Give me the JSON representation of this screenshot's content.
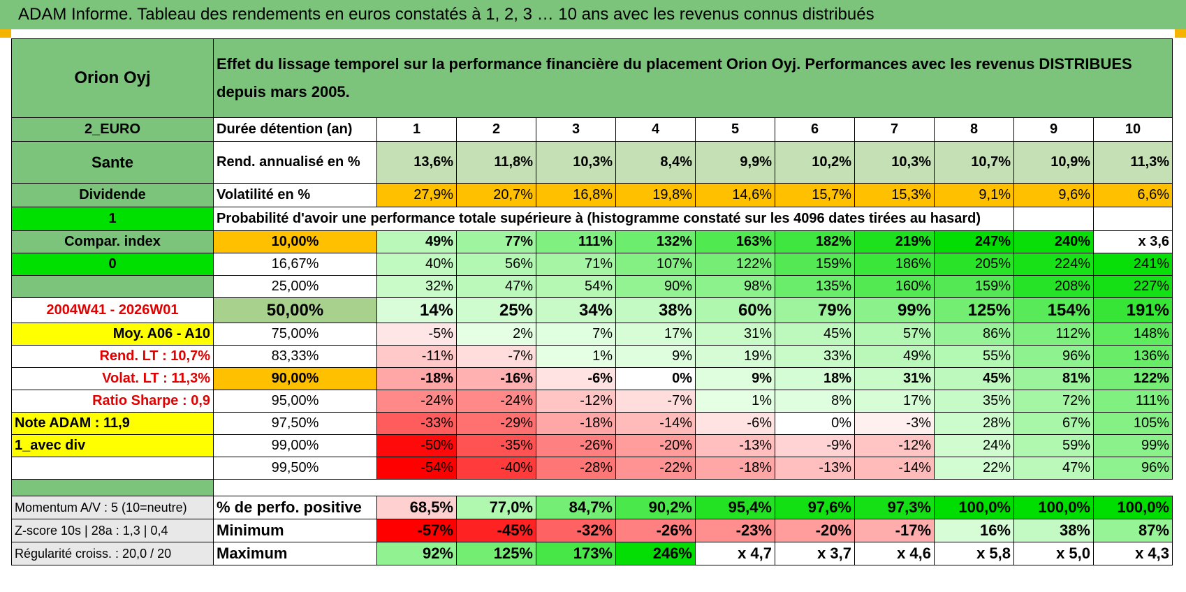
{
  "title": "ADAM Informe. Tableau des rendements en euros constatés à 1, 2, 3 … 10 ans avec les revenus connus distribués",
  "header": {
    "name": "Orion Oyj",
    "description": "Effet du lissage temporel sur la performance financière du placement Orion Oyj. Performances avec les revenus DISTRIBUES depuis mars 2005."
  },
  "left_labels": {
    "currency": "2_EURO",
    "sector": "Sante",
    "type": "Dividende",
    "flag1": "1",
    "compar": "Compar. index",
    "flag0": "0",
    "period": "2004W41 - 2026W01",
    "moy": "Moy. A06 - A10",
    "rend_lt": "Rend. LT :    10,7%",
    "volat_lt": "Volat. LT :    11,3%",
    "sharpe": "Ratio Sharpe :     0,9",
    "note": "Note ADAM : 11,9",
    "avec_div": "1_avec div"
  },
  "row_labels": {
    "duree": "Durée détention (an)",
    "rend": "Rend. annualisé en %",
    "vol": "Volatilité en %",
    "prob": "Probabilité d'avoir une performance totale supérieure à (histogramme constaté sur les 4096 dates tirées au hasard)"
  },
  "years": [
    "1",
    "2",
    "3",
    "4",
    "5",
    "6",
    "7",
    "8",
    "9",
    "10"
  ],
  "rend": [
    "13,6%",
    "11,8%",
    "10,3%",
    "8,4%",
    "9,9%",
    "10,2%",
    "10,3%",
    "10,7%",
    "10,9%",
    "11,3%"
  ],
  "vol": [
    "27,9%",
    "20,7%",
    "16,8%",
    "19,8%",
    "14,6%",
    "15,7%",
    "15,3%",
    "9,1%",
    "9,6%",
    "6,6%"
  ],
  "prob_rows": [
    {
      "pct": "10,00%",
      "values": [
        "49%",
        "77%",
        "111%",
        "132%",
        "163%",
        "182%",
        "219%",
        "247%",
        "240%",
        "x 3,6"
      ]
    },
    {
      "pct": "16,67%",
      "values": [
        "40%",
        "56%",
        "71%",
        "107%",
        "122%",
        "159%",
        "186%",
        "205%",
        "224%",
        "241%"
      ]
    },
    {
      "pct": "25,00%",
      "values": [
        "32%",
        "47%",
        "54%",
        "90%",
        "98%",
        "135%",
        "160%",
        "159%",
        "208%",
        "227%"
      ]
    },
    {
      "pct": "50,00%",
      "values": [
        "14%",
        "25%",
        "34%",
        "38%",
        "60%",
        "79%",
        "99%",
        "125%",
        "154%",
        "191%"
      ]
    },
    {
      "pct": "75,00%",
      "values": [
        "-5%",
        "2%",
        "7%",
        "17%",
        "31%",
        "45%",
        "57%",
        "86%",
        "112%",
        "148%"
      ]
    },
    {
      "pct": "83,33%",
      "values": [
        "-11%",
        "-7%",
        "1%",
        "9%",
        "19%",
        "33%",
        "49%",
        "55%",
        "96%",
        "136%"
      ]
    },
    {
      "pct": "90,00%",
      "values": [
        "-18%",
        "-16%",
        "-6%",
        "0%",
        "9%",
        "18%",
        "31%",
        "45%",
        "81%",
        "122%"
      ]
    },
    {
      "pct": "95,00%",
      "values": [
        "-24%",
        "-24%",
        "-12%",
        "-7%",
        "1%",
        "8%",
        "17%",
        "35%",
        "72%",
        "111%"
      ]
    },
    {
      "pct": "97,50%",
      "values": [
        "-33%",
        "-29%",
        "-18%",
        "-14%",
        "-6%",
        "0%",
        "-3%",
        "28%",
        "67%",
        "105%"
      ]
    },
    {
      "pct": "99,00%",
      "values": [
        "-50%",
        "-35%",
        "-26%",
        "-20%",
        "-13%",
        "-9%",
        "-12%",
        "24%",
        "59%",
        "99%"
      ]
    },
    {
      "pct": "99,50%",
      "values": [
        "-54%",
        "-40%",
        "-28%",
        "-22%",
        "-18%",
        "-13%",
        "-14%",
        "22%",
        "47%",
        "96%"
      ]
    }
  ],
  "bottom": [
    {
      "left": "Momentum A/V : 5 (10=neutre)",
      "label": "% de perfo. positive",
      "values": [
        "68,5%",
        "77,0%",
        "84,7%",
        "90,2%",
        "95,4%",
        "97,6%",
        "97,3%",
        "100,0%",
        "100,0%",
        "100,0%"
      ]
    },
    {
      "left": "Z-score 10s | 28a : 1,3 | 0,4",
      "label": "Minimum",
      "values": [
        "-57%",
        "-45%",
        "-32%",
        "-26%",
        "-23%",
        "-20%",
        "-17%",
        "16%",
        "38%",
        "87%"
      ]
    },
    {
      "left": "Régularité croiss. : 20,0 / 20",
      "label": "Maximum",
      "values": [
        "92%",
        "125%",
        "173%",
        "246%",
        "x 4,7",
        "x 3,7",
        "x 4,6",
        "x 5,8",
        "x 5,0",
        "x 4,3"
      ]
    }
  ],
  "colors": {
    "header_green": "#7cc47c",
    "light_green": "#c5e0b4",
    "orange": "#ffc000",
    "lime": "#00e000",
    "yellow": "#ffff00",
    "red_text": "#e00000"
  }
}
